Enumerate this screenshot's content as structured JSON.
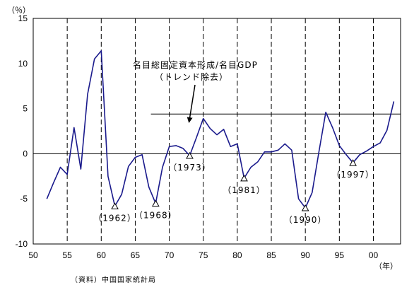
{
  "chart_data": {
    "type": "line",
    "title": "名目総固定資本形成/名目GDP",
    "subtitle": "（トレンド除去）",
    "xlabel": "（年）",
    "ylabel": "（％）",
    "source": "（資料）中国国家統計局",
    "xlim": [
      1950,
      2004
    ],
    "ylim": [
      -10,
      15
    ],
    "x_ticks": [
      1950,
      1955,
      1960,
      1965,
      1970,
      1975,
      1980,
      1985,
      1990,
      1995,
      2000
    ],
    "x_tick_labels": [
      "50",
      "55",
      "60",
      "65",
      "70",
      "75",
      "80",
      "85",
      "90",
      "95",
      "00"
    ],
    "y_ticks": [
      -10,
      -5,
      0,
      5,
      10,
      15
    ],
    "y_tick_labels": [
      "-10",
      "-5",
      "0",
      "5",
      "10",
      "15"
    ],
    "grid": "dashed vertical lines at each x tick",
    "line_color": "#1a1a8c",
    "series": [
      {
        "x": [
          1952,
          1953,
          1954,
          1955,
          1956,
          1957,
          1958,
          1959,
          1960,
          1961,
          1962,
          1963,
          1964,
          1965,
          1966,
          1967,
          1968,
          1969,
          1970,
          1971,
          1972,
          1973,
          1974,
          1975,
          1976,
          1977,
          1978,
          1979,
          1980,
          1981,
          1982,
          1983,
          1984,
          1985,
          1986,
          1987,
          1988,
          1989,
          1990,
          1991,
          1992,
          1993,
          1994,
          1995,
          1996,
          1997,
          1998,
          1999,
          2000,
          2001,
          2002,
          2003
        ],
        "y": [
          -5.0,
          -3.2,
          -1.5,
          -2.3,
          2.9,
          -1.7,
          6.6,
          10.5,
          11.4,
          -2.5,
          -5.8,
          -4.5,
          -1.4,
          -0.4,
          -0.1,
          -3.7,
          -5.5,
          -1.5,
          0.8,
          0.9,
          0.6,
          -0.2,
          1.8,
          3.9,
          2.8,
          2.1,
          2.7,
          0.8,
          1.1,
          -2.7,
          -1.5,
          -0.9,
          0.2,
          0.2,
          0.4,
          1.1,
          0.4,
          -5.0,
          -6.0,
          -4.3,
          0.2,
          4.6,
          2.9,
          0.9,
          -0.1,
          -1.0,
          -0.1,
          0.3,
          0.8,
          1.2,
          2.6,
          5.8
        ]
      }
    ],
    "reference_line": {
      "y": 4.4,
      "x_from": 1967.3,
      "x_to": 2004
    },
    "troughs": [
      {
        "x": 1962,
        "y": -5.8,
        "label": "（1962）"
      },
      {
        "x": 1968,
        "y": -5.5,
        "label": "（1968）"
      },
      {
        "x": 1973,
        "y": -0.2,
        "label": "（1973）"
      },
      {
        "x": 1981,
        "y": -2.7,
        "label": "（1981）"
      },
      {
        "x": 1990,
        "y": -6.0,
        "label": "（1990）"
      },
      {
        "x": 1997,
        "y": -1.0,
        "label": "（1997）"
      }
    ]
  }
}
